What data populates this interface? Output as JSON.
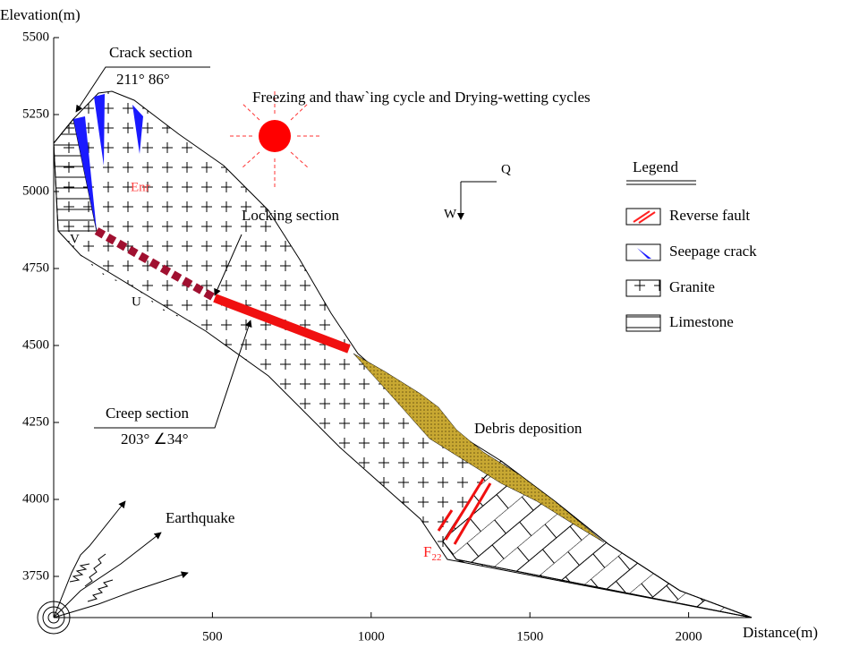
{
  "axes": {
    "y_label": "Elevation(m)",
    "x_label": "Distance(m)",
    "yticks": [
      5500,
      5250,
      5000,
      4750,
      4500,
      4250,
      4000,
      3750
    ],
    "xticks": [
      500,
      1000,
      1500,
      2000
    ]
  },
  "annotations": {
    "crack_section": "Crack section",
    "crack_angles": "211°  86°",
    "cycles": "Freezing and thaw`ing cycle and Drying-wetting cycles",
    "enr": "Enr",
    "locking_section": "Locking section",
    "q": "Q",
    "w": "W",
    "v": "V",
    "u": "U",
    "creep_section": "Creep section",
    "creep_angles": "203°  ∠34°",
    "debris": "Debris deposition",
    "earthquake": "Earthquake",
    "fault": {
      "main": "F",
      "sub": "22"
    }
  },
  "legend": {
    "title": "Legend",
    "items": [
      "Reverse fault",
      "Seepage crack",
      "Granite",
      "Limestone"
    ]
  }
}
